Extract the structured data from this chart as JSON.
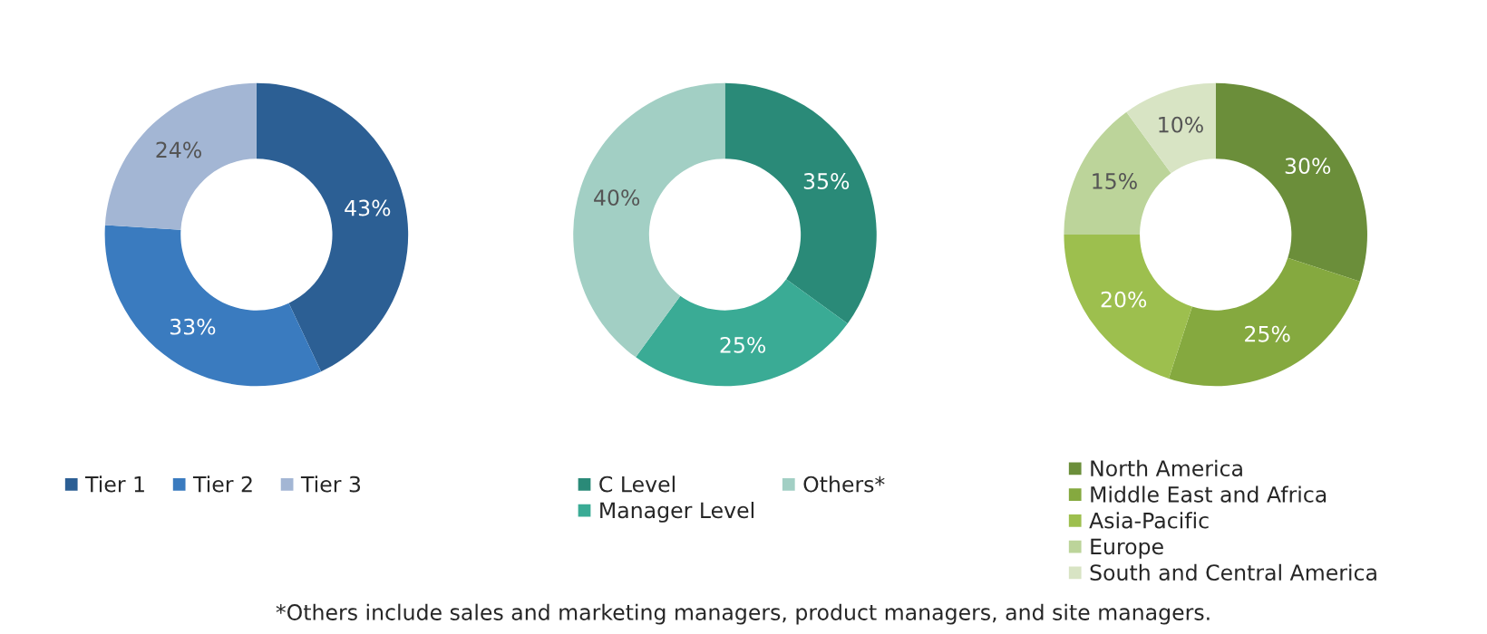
{
  "chart_data": [
    {
      "type": "donut",
      "categories": [
        "Tier 1",
        "Tier 2",
        "Tier 3"
      ],
      "values": [
        43,
        33,
        24
      ],
      "colors": [
        "#2c5f94",
        "#3a7bbf",
        "#a3b6d4"
      ],
      "value_labels": [
        "43%",
        "33%",
        "24%"
      ],
      "legend": "bottom"
    },
    {
      "type": "donut",
      "categories": [
        "C Level",
        "Manager Level",
        "Others*"
      ],
      "values": [
        35,
        25,
        40
      ],
      "colors": [
        "#2a8a78",
        "#3aab95",
        "#a2cfc4"
      ],
      "value_labels": [
        "35%",
        "25%",
        "40%"
      ],
      "legend": "bottom"
    },
    {
      "type": "donut",
      "categories": [
        "North America",
        "Middle East and Africa",
        "Asia-Pacific",
        "Europe",
        "South and Central America"
      ],
      "values": [
        30,
        25,
        20,
        15,
        10
      ],
      "colors": [
        "#6b8e3a",
        "#85a93f",
        "#9dbf4e",
        "#bcd49a",
        "#d8e4c4"
      ],
      "value_labels": [
        "30%",
        "25%",
        "20%",
        "15%",
        "10%"
      ],
      "legend": "bottom",
      "annotations": [
        "*Others include sales and marketing managers, product managers, and site managers."
      ]
    }
  ]
}
